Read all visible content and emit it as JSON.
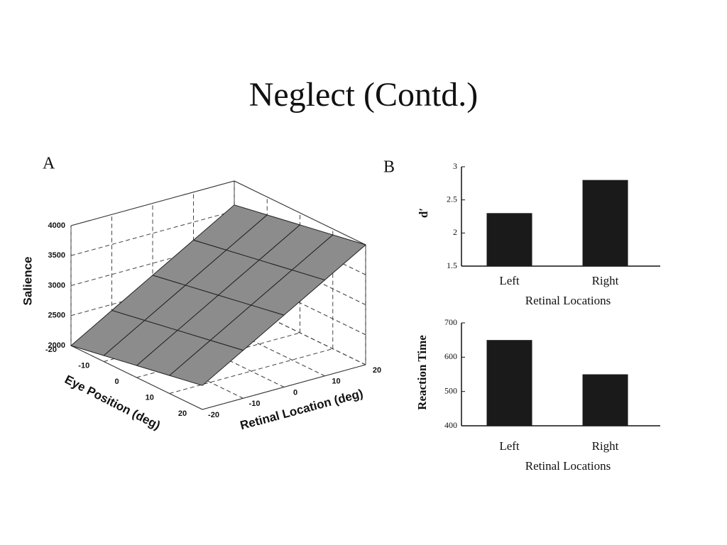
{
  "title": "Neglect (Contd.)",
  "chart_data": [
    {
      "type": "surface",
      "panel": "A",
      "x_label": "Eye Position (deg)",
      "y_label": "Retinal Location (deg)",
      "z_label": "Salience",
      "x": [
        -20,
        -10,
        0,
        10,
        20
      ],
      "y": [
        -20,
        -10,
        0,
        10,
        20
      ],
      "z": [
        [
          2000,
          2400,
          2800,
          3200,
          3600
        ],
        [
          2100,
          2500,
          2900,
          3300,
          3700
        ],
        [
          2200,
          2600,
          3000,
          3400,
          3800
        ],
        [
          2300,
          2700,
          3100,
          3500,
          3900
        ],
        [
          2400,
          2800,
          3200,
          3600,
          4000
        ]
      ],
      "xlim": [
        -20,
        20
      ],
      "ylim": [
        -20,
        20
      ],
      "zlim": [
        2000,
        4000
      ],
      "xticks": [
        -20,
        -10,
        0,
        10,
        20
      ],
      "yticks": [
        -20,
        -10,
        0,
        10,
        20
      ],
      "zticks": [
        2000,
        2500,
        3000,
        3500,
        4000
      ],
      "color": "#8c8c8c",
      "grid": true
    },
    {
      "type": "bar",
      "panel": "B",
      "y_label": "d′",
      "x_label": "Retinal Locations",
      "categories": [
        "Left",
        "Right"
      ],
      "values": [
        2.3,
        2.8
      ],
      "color": "#1a1a1a",
      "ylim": [
        1.5,
        3
      ],
      "yticks": [
        1.5,
        2,
        2.5,
        3
      ],
      "grid": false
    },
    {
      "type": "bar",
      "y_label": "Reaction Time",
      "x_label": "Retinal Locations",
      "categories": [
        "Left",
        "Right"
      ],
      "values": [
        650,
        550
      ],
      "color": "#1a1a1a",
      "ylim": [
        400,
        700
      ],
      "yticks": [
        400,
        500,
        600,
        700
      ],
      "grid": false
    }
  ]
}
